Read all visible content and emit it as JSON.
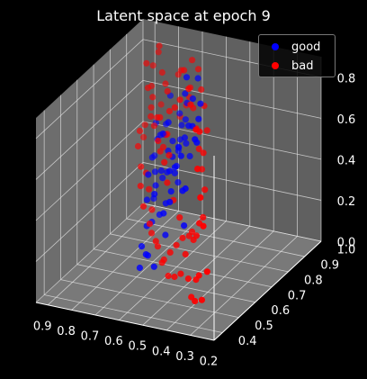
{
  "chart_data": {
    "type": "scatter",
    "title": "Latent space at epoch 9",
    "x_ticks": [
      "0.2",
      "0.3",
      "0.4",
      "0.5",
      "0.6",
      "0.7",
      "0.8",
      "0.9"
    ],
    "y_ticks": [
      "0.4",
      "0.5",
      "0.6",
      "0.7",
      "0.8",
      "0.9",
      "1.0"
    ],
    "z_ticks": [
      "0.0",
      "0.2",
      "0.4",
      "0.6",
      "0.8"
    ],
    "xlim": [
      0.2,
      0.95
    ],
    "ylim": [
      0.35,
      1.0
    ],
    "zlim": [
      0.0,
      0.9
    ],
    "legend_position": "top-right",
    "grid": true,
    "background": "#000000",
    "pane_color": "#808080",
    "series": [
      {
        "name": "good",
        "color": "#0000ff",
        "points": [
          [
            0.55,
            0.7,
            0.7
          ],
          [
            0.58,
            0.72,
            0.62
          ],
          [
            0.62,
            0.74,
            0.55
          ],
          [
            0.6,
            0.78,
            0.48
          ],
          [
            0.65,
            0.76,
            0.4
          ],
          [
            0.63,
            0.8,
            0.52
          ],
          [
            0.68,
            0.79,
            0.45
          ],
          [
            0.7,
            0.82,
            0.5
          ],
          [
            0.72,
            0.78,
            0.38
          ],
          [
            0.66,
            0.84,
            0.6
          ],
          [
            0.74,
            0.85,
            0.42
          ],
          [
            0.71,
            0.88,
            0.46
          ],
          [
            0.76,
            0.8,
            0.35
          ],
          [
            0.69,
            0.86,
            0.55
          ],
          [
            0.73,
            0.9,
            0.4
          ],
          [
            0.75,
            0.83,
            0.3
          ],
          [
            0.67,
            0.75,
            0.65
          ],
          [
            0.78,
            0.86,
            0.48
          ],
          [
            0.64,
            0.82,
            0.7
          ],
          [
            0.7,
            0.76,
            0.58
          ],
          [
            0.72,
            0.7,
            0.42
          ],
          [
            0.68,
            0.68,
            0.35
          ],
          [
            0.66,
            0.72,
            0.28
          ],
          [
            0.7,
            0.74,
            0.2
          ],
          [
            0.74,
            0.72,
            0.15
          ],
          [
            0.72,
            0.66,
            0.1
          ],
          [
            0.68,
            0.64,
            0.08
          ],
          [
            0.66,
            0.6,
            0.12
          ],
          [
            0.64,
            0.62,
            0.05
          ],
          [
            0.7,
            0.62,
            0.03
          ],
          [
            0.62,
            0.66,
            0.18
          ],
          [
            0.76,
            0.75,
            0.25
          ],
          [
            0.8,
            0.84,
            0.38
          ],
          [
            0.77,
            0.88,
            0.52
          ],
          [
            0.74,
            0.92,
            0.55
          ],
          [
            0.79,
            0.9,
            0.45
          ],
          [
            0.62,
            0.78,
            0.78
          ],
          [
            0.58,
            0.8,
            0.85
          ],
          [
            0.6,
            0.76,
            0.88
          ],
          [
            0.56,
            0.74,
            0.8
          ],
          [
            0.52,
            0.68,
            0.72
          ],
          [
            0.5,
            0.7,
            0.82
          ],
          [
            0.48,
            0.66,
            0.78
          ],
          [
            0.54,
            0.64,
            0.6
          ],
          [
            0.58,
            0.66,
            0.52
          ],
          [
            0.46,
            0.62,
            0.7
          ],
          [
            0.44,
            0.58,
            0.75
          ],
          [
            0.6,
            0.62,
            0.32
          ],
          [
            0.56,
            0.6,
            0.4
          ],
          [
            0.52,
            0.62,
            0.45
          ],
          [
            0.5,
            0.6,
            0.3
          ],
          [
            0.48,
            0.58,
            0.5
          ],
          [
            0.82,
            0.9,
            0.42
          ],
          [
            0.84,
            0.92,
            0.48
          ],
          [
            0.8,
            0.95,
            0.6
          ],
          [
            0.86,
            0.94,
            0.3
          ],
          [
            0.78,
            0.82,
            0.2
          ],
          [
            0.76,
            0.78,
            0.12
          ],
          [
            0.73,
            0.76,
            0.32
          ],
          [
            0.71,
            0.8,
            0.36
          ],
          [
            0.69,
            0.84,
            0.44
          ],
          [
            0.67,
            0.8,
            0.4
          ],
          [
            0.65,
            0.78,
            0.34
          ],
          [
            0.63,
            0.7,
            0.46
          ],
          [
            0.61,
            0.68,
            0.38
          ]
        ]
      },
      {
        "name": "bad",
        "color": "#ff0000",
        "points": [
          [
            0.4,
            0.55,
            0.82
          ],
          [
            0.45,
            0.6,
            0.78
          ],
          [
            0.5,
            0.64,
            0.86
          ],
          [
            0.55,
            0.7,
            0.88
          ],
          [
            0.6,
            0.72,
            0.8
          ],
          [
            0.65,
            0.76,
            0.72
          ],
          [
            0.7,
            0.8,
            0.66
          ],
          [
            0.75,
            0.86,
            0.7
          ],
          [
            0.8,
            0.9,
            0.75
          ],
          [
            0.85,
            0.95,
            0.8
          ],
          [
            0.88,
            0.96,
            0.72
          ],
          [
            0.9,
            0.98,
            0.6
          ],
          [
            0.86,
            0.92,
            0.55
          ],
          [
            0.82,
            0.88,
            0.5
          ],
          [
            0.78,
            0.84,
            0.58
          ],
          [
            0.74,
            0.8,
            0.62
          ],
          [
            0.72,
            0.76,
            0.54
          ],
          [
            0.68,
            0.74,
            0.46
          ],
          [
            0.64,
            0.7,
            0.4
          ],
          [
            0.6,
            0.68,
            0.34
          ],
          [
            0.56,
            0.66,
            0.28
          ],
          [
            0.52,
            0.62,
            0.22
          ],
          [
            0.48,
            0.58,
            0.18
          ],
          [
            0.44,
            0.54,
            0.1
          ],
          [
            0.4,
            0.5,
            0.05
          ],
          [
            0.35,
            0.45,
            0.08
          ],
          [
            0.3,
            0.42,
            0.12
          ],
          [
            0.28,
            0.4,
            0.5
          ],
          [
            0.32,
            0.44,
            0.6
          ],
          [
            0.36,
            0.48,
            0.7
          ],
          [
            0.38,
            0.52,
            0.4
          ],
          [
            0.42,
            0.56,
            0.3
          ],
          [
            0.46,
            0.6,
            0.24
          ],
          [
            0.5,
            0.58,
            0.08
          ],
          [
            0.54,
            0.6,
            0.04
          ],
          [
            0.58,
            0.62,
            0.02
          ],
          [
            0.62,
            0.64,
            0.06
          ],
          [
            0.66,
            0.66,
            0.14
          ],
          [
            0.7,
            0.68,
            0.2
          ],
          [
            0.74,
            0.7,
            0.26
          ],
          [
            0.78,
            0.74,
            0.32
          ],
          [
            0.82,
            0.8,
            0.36
          ],
          [
            0.86,
            0.84,
            0.42
          ],
          [
            0.88,
            0.88,
            0.46
          ],
          [
            0.84,
            0.9,
            0.62
          ],
          [
            0.8,
            0.92,
            0.68
          ],
          [
            0.76,
            0.94,
            0.72
          ],
          [
            0.72,
            0.9,
            0.78
          ],
          [
            0.68,
            0.86,
            0.82
          ],
          [
            0.64,
            0.84,
            0.76
          ],
          [
            0.6,
            0.8,
            0.7
          ],
          [
            0.56,
            0.76,
            0.64
          ],
          [
            0.52,
            0.72,
            0.58
          ],
          [
            0.48,
            0.68,
            0.52
          ],
          [
            0.44,
            0.64,
            0.46
          ],
          [
            0.42,
            0.6,
            0.36
          ],
          [
            0.46,
            0.66,
            0.62
          ],
          [
            0.5,
            0.74,
            0.66
          ],
          [
            0.54,
            0.78,
            0.74
          ],
          [
            0.58,
            0.82,
            0.78
          ],
          [
            0.62,
            0.86,
            0.84
          ],
          [
            0.66,
            0.88,
            0.86
          ],
          [
            0.7,
            0.92,
            0.64
          ],
          [
            0.74,
            0.96,
            0.56
          ],
          [
            0.78,
            0.98,
            0.48
          ],
          [
            0.82,
            0.96,
            0.4
          ],
          [
            0.86,
            0.98,
            0.52
          ],
          [
            0.9,
            0.94,
            0.44
          ],
          [
            0.92,
            0.96,
            0.36
          ],
          [
            0.84,
            0.86,
            0.28
          ],
          [
            0.8,
            0.82,
            0.24
          ],
          [
            0.76,
            0.78,
            0.18
          ],
          [
            0.72,
            0.72,
            0.12
          ],
          [
            0.68,
            0.7,
            0.08
          ],
          [
            0.64,
            0.68,
            0.04
          ],
          [
            0.6,
            0.66,
            0.1
          ],
          [
            0.56,
            0.64,
            0.16
          ],
          [
            0.52,
            0.66,
            0.2
          ],
          [
            0.48,
            0.62,
            0.26
          ],
          [
            0.25,
            0.38,
            0.3
          ],
          [
            0.34,
            0.46,
            0.2
          ],
          [
            0.38,
            0.5,
            0.14
          ],
          [
            0.66,
            0.74,
            0.5
          ],
          [
            0.7,
            0.78,
            0.56
          ],
          [
            0.74,
            0.82,
            0.46
          ],
          [
            0.78,
            0.86,
            0.4
          ],
          [
            0.82,
            0.86,
            0.56
          ],
          [
            0.86,
            0.9,
            0.66
          ],
          [
            0.88,
            0.92,
            0.76
          ],
          [
            0.84,
            0.94,
            0.84
          ]
        ]
      }
    ]
  }
}
